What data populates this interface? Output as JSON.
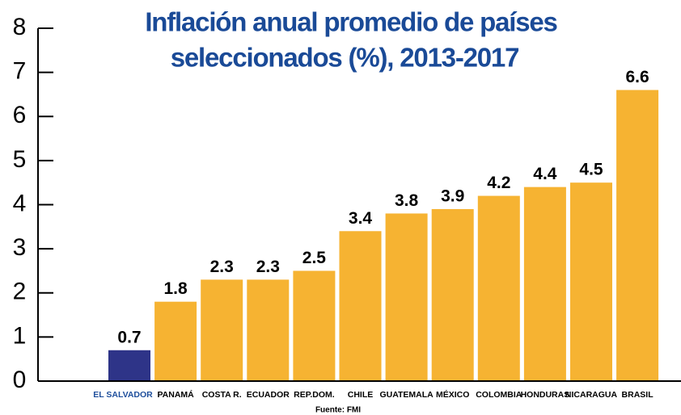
{
  "chart_data": {
    "type": "bar",
    "title": "Inflación anual promedio de países",
    "subtitle": "seleccionados (%), 2013-2017",
    "categories": [
      "EL SALVADOR",
      "PANAMÁ",
      "COSTA R.",
      "ECUADOR",
      "REP.DOM.",
      "CHILE",
      "GUATEMALA",
      "MÉXICO",
      "COLOMBIA",
      "HONDURAS",
      "NICARAGUA",
      "BRASIL"
    ],
    "values": [
      0.7,
      1.8,
      2.3,
      2.3,
      2.5,
      3.4,
      3.8,
      3.9,
      4.2,
      4.4,
      4.5,
      6.6
    ],
    "colors": [
      "#2e3488",
      "#f6b332",
      "#f6b332",
      "#f6b332",
      "#f6b332",
      "#f6b332",
      "#f6b332",
      "#f6b332",
      "#f6b332",
      "#f6b332",
      "#f6b332",
      "#f6b332"
    ],
    "category_label_colors": [
      "#1f4f9c",
      "#000000",
      "#000000",
      "#000000",
      "#000000",
      "#000000",
      "#000000",
      "#000000",
      "#000000",
      "#000000",
      "#000000",
      "#000000"
    ],
    "ylim": [
      0,
      8
    ],
    "yticks": [
      0,
      1,
      2,
      3,
      4,
      5,
      6,
      7,
      8
    ],
    "source": "Fuente: FMI"
  }
}
